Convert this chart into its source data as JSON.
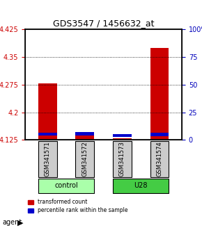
{
  "title": "GDS3547 / 1456632_at",
  "samples": [
    "GSM341571",
    "GSM341572",
    "GSM341573",
    "GSM341574"
  ],
  "groups": [
    {
      "name": "control",
      "samples": [
        0,
        1
      ],
      "color": "#90ee90"
    },
    {
      "name": "U28",
      "samples": [
        2,
        3
      ],
      "color": "#00cc00"
    }
  ],
  "red_values": [
    4.278,
    4.143,
    4.13,
    4.375
  ],
  "blue_values": [
    4.137,
    4.138,
    4.133,
    4.136
  ],
  "baseline": 4.125,
  "ylim": [
    4.125,
    4.425
  ],
  "yticks_left": [
    4.125,
    4.2,
    4.275,
    4.35,
    4.425
  ],
  "yticks_right": [
    0,
    25,
    50,
    75,
    100
  ],
  "bar_width": 0.5,
  "red_color": "#cc0000",
  "blue_color": "#0000cc",
  "grid_color": "#000000",
  "legend_red": "transformed count",
  "legend_blue": "percentile rank within the sample",
  "agent_label": "agent",
  "bar_bg_color": "#cccccc",
  "blue_bar_height": 0.008
}
